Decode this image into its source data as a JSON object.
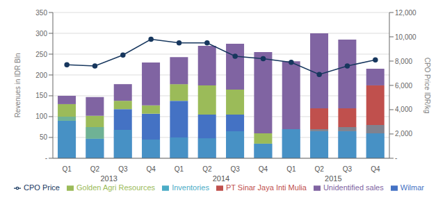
{
  "chart_data": {
    "type": "bar",
    "stacked": true,
    "grid": true,
    "legend": "bottom",
    "categories": [
      "Q1",
      "Q2",
      "Q3",
      "Q4",
      "Q1",
      "Q2",
      "Q3",
      "Q4",
      "Q1",
      "Q2",
      "Q3",
      "Q4"
    ],
    "annotations": [
      "2013",
      "2014",
      "2015"
    ],
    "y_label": "Revenues in IDR Bln",
    "y2_label": "CPO Price IDR/kg",
    "ylim": [
      0,
      350
    ],
    "yticks": [
      {
        "value": 0,
        "label": "-"
      },
      50,
      100,
      150,
      200,
      250,
      300,
      350
    ],
    "y2lim": [
      0,
      12000
    ],
    "y2ticks": [
      {
        "value": 0,
        "label": "-"
      },
      {
        "value": 2000,
        "label": "2,000"
      },
      {
        "value": 4000,
        "label": "4,000"
      },
      {
        "value": 6000,
        "label": "6,000"
      },
      {
        "value": 8000,
        "label": "8,000"
      },
      {
        "value": 10000,
        "label": "10,000"
      },
      {
        "value": 12000,
        "label": "12,000"
      }
    ],
    "series": [
      {
        "name": "Wilmar",
        "color": "#4472C4",
        "values": [
          90,
          47,
          118,
          107,
          138,
          105,
          105,
          35,
          70,
          65,
          65,
          60
        ]
      },
      {
        "name": "PT Sinar Jaya Inti Mulia",
        "color": "#C0504D",
        "values": [
          0,
          0,
          0,
          0,
          0,
          0,
          0,
          0,
          0,
          55,
          55,
          115
        ]
      },
      {
        "name": "Golden Agri Resources",
        "color": "#9BBB59",
        "values": [
          40,
          55,
          20,
          20,
          40,
          70,
          60,
          25,
          0,
          0,
          0,
          0
        ]
      },
      {
        "name": "Unidentified sales",
        "color": "#8064A2",
        "values": [
          20,
          45,
          40,
          103,
          65,
          95,
          110,
          195,
          163,
          180,
          165,
          40
        ]
      },
      {
        "name": "Inventories",
        "type": "overlay",
        "color": "#4BACC6",
        "values": [
          100,
          75,
          68,
          45,
          50,
          48,
          65,
          35,
          70,
          70,
          75,
          80
        ]
      },
      {
        "name": "CPO Price",
        "type": "line",
        "axis": "y2",
        "marker": "circle",
        "color": "#17375E",
        "values": [
          7700,
          7600,
          8500,
          9800,
          9500,
          9500,
          8400,
          8200,
          7900,
          6900,
          7600,
          8100
        ]
      }
    ]
  }
}
